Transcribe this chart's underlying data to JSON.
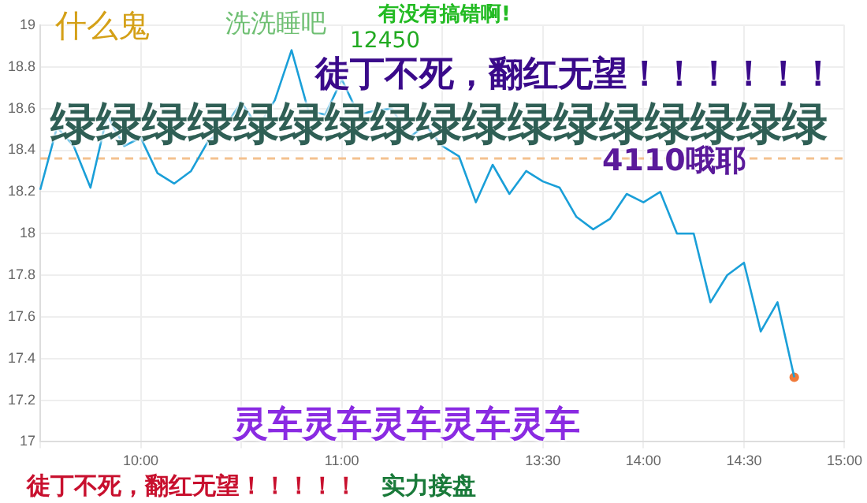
{
  "chart_data": {
    "type": "line",
    "categories": [
      null,
      null,
      null,
      null,
      null,
      null,
      "10:00",
      null,
      null,
      null,
      null,
      null,
      null,
      null,
      null,
      null,
      null,
      null,
      "11:00",
      null,
      null,
      null,
      null,
      null,
      null,
      null,
      null,
      null,
      null,
      null,
      "13:30",
      null,
      null,
      null,
      null,
      null,
      "14:00",
      null,
      null,
      null,
      null,
      null,
      "14:30",
      null,
      null,
      null,
      null,
      null,
      "15:00"
    ],
    "series": [
      {
        "color": "#1a9fd8",
        "marker": "none",
        "values": [
          18.21,
          18.51,
          18.42,
          18.22,
          18.57,
          18.42,
          18.46,
          18.29,
          18.24,
          18.3,
          18.44,
          18.51,
          18.63,
          18.51,
          18.64,
          18.88,
          18.59,
          18.57,
          18.74,
          18.57,
          18.59,
          18.6,
          18.46,
          18.52,
          18.42,
          18.37,
          18.15,
          18.33,
          18.19,
          18.3,
          18.25,
          18.22,
          18.08,
          18.02,
          18.07,
          18.19,
          18.15,
          18.2,
          18.0,
          18.0,
          17.67,
          17.8,
          17.86,
          17.53,
          17.67,
          17.31,
          null,
          null,
          null
        ]
      },
      {
        "type": "scatter",
        "color": "#f07a3a",
        "marker": "circle",
        "values": [
          null,
          null,
          null,
          null,
          null,
          null,
          null,
          null,
          null,
          null,
          null,
          null,
          null,
          null,
          null,
          null,
          null,
          null,
          null,
          null,
          null,
          null,
          null,
          null,
          null,
          null,
          null,
          null,
          null,
          null,
          null,
          null,
          null,
          null,
          null,
          null,
          null,
          null,
          null,
          null,
          null,
          null,
          null,
          null,
          null,
          17.31,
          null,
          null,
          null
        ]
      }
    ],
    "ylim": [
      17,
      19
    ],
    "yticks": [
      17,
      17.2,
      17.4,
      17.6,
      17.8,
      18,
      18.2,
      18.4,
      18.6,
      18.8,
      19
    ],
    "grid": true,
    "ref_lines": [
      {
        "axis": "y",
        "value": 18.36,
        "color": "#f4c18f",
        "line_style": "dashed"
      }
    ],
    "annotations": [
      "什么鬼",
      "洗洗睡吧",
      "有没有搞错啊!",
      "12450",
      "徒丁不死，翻红无望！！！！！！",
      "绿绿绿绿绿绿绿绿绿绿绿绿绿绿绿绿绿",
      "4110哦耶",
      "灵车灵车灵车灵车灵车",
      "徒丁不死，翻红无望！！！！！",
      "实力接盘"
    ]
  }
}
